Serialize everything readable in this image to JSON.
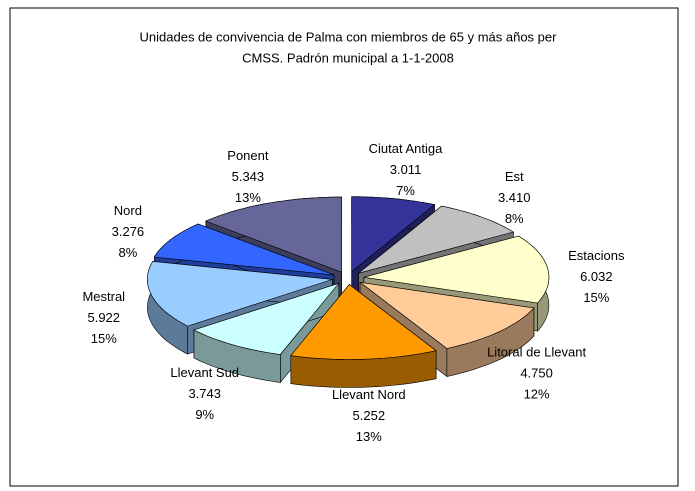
{
  "chart_data": {
    "type": "pie",
    "title": [
      "Unidades de convivencia de Palma con miembros de 65  y más años per",
      "CMSS. Padrón municipal a 1-1-2008"
    ],
    "categories": [
      "Ciutat Antiga",
      "Est",
      "Estacions",
      "Litoral de Llevant",
      "Llevant Nord",
      "Llevant Sud",
      "Mestral",
      "Nord",
      "Ponent"
    ],
    "values": [
      3011,
      3410,
      6032,
      4750,
      5252,
      3743,
      5922,
      3276,
      5343
    ],
    "value_labels": [
      "3.011",
      "3.410",
      "6.032",
      "4.750",
      "5.252",
      "3.743",
      "5.922",
      "3.276",
      "5.343"
    ],
    "percent_labels": [
      "7%",
      "8%",
      "15%",
      "12%",
      "13%",
      "9%",
      "15%",
      "8%",
      "13%"
    ],
    "colors": [
      "#333399",
      "#c0c0c0",
      "#ffffcc",
      "#ffcc99",
      "#ff9900",
      "#ccffff",
      "#99ccff",
      "#3366ff",
      "#666699"
    ]
  }
}
